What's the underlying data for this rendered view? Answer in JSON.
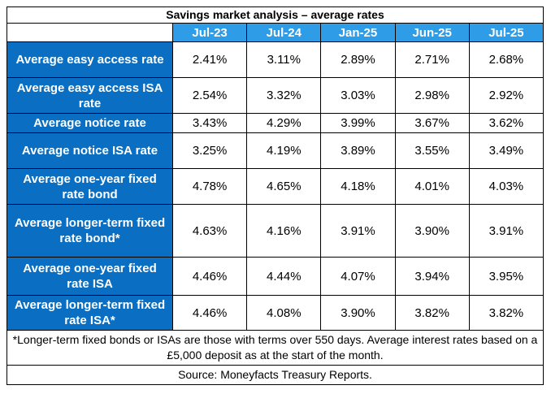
{
  "title": "Savings market analysis – average rates",
  "columns": [
    "Jul-23",
    "Jul-24",
    "Jan-25",
    "Jun-25",
    "Jul-25"
  ],
  "rows": [
    {
      "label": "Average easy access rate",
      "values": [
        "2.41%",
        "3.11%",
        "2.89%",
        "2.71%",
        "2.68%"
      ]
    },
    {
      "label": "Average easy access ISA rate",
      "values": [
        "2.54%",
        "3.32%",
        "3.03%",
        "2.98%",
        "2.92%"
      ]
    },
    {
      "label": "Average notice rate",
      "values": [
        "3.43%",
        "4.29%",
        "3.99%",
        "3.67%",
        "3.62%"
      ]
    },
    {
      "label": "Average notice ISA rate",
      "values": [
        "3.25%",
        "4.19%",
        "3.89%",
        "3.55%",
        "3.49%"
      ]
    },
    {
      "label": "Average one-year fixed rate bond",
      "values": [
        "4.78%",
        "4.65%",
        "4.18%",
        "4.01%",
        "4.03%"
      ]
    },
    {
      "label": "Average longer-term fixed rate bond*",
      "values": [
        "4.63%",
        "4.16%",
        "3.91%",
        "3.90%",
        "3.91%"
      ]
    },
    {
      "label": "Average one-year fixed rate ISA",
      "values": [
        "4.46%",
        "4.44%",
        "4.07%",
        "3.94%",
        "3.95%"
      ]
    },
    {
      "label": "Average longer-term fixed rate ISA*",
      "values": [
        "4.46%",
        "4.08%",
        "3.90%",
        "3.82%",
        "3.82%"
      ]
    }
  ],
  "footnote": "*Longer-term fixed bonds or ISAs are those with terms over 550 days. Average interest rates based on a £5,000 deposit as at the start of the month.",
  "source": "Source: Moneyfacts Treasury Reports.",
  "colors": {
    "header_blue": "#2e9ce6",
    "row_label_blue": "#0a6fc2",
    "text_white": "#ffffff"
  }
}
